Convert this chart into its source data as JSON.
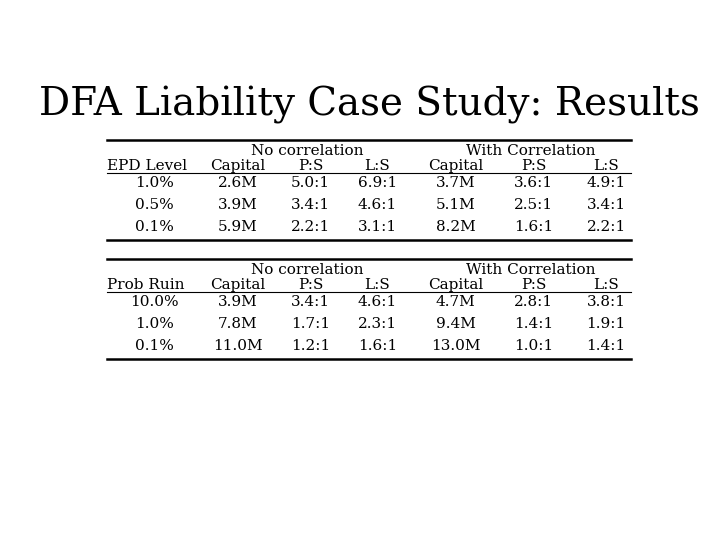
{
  "title": "DFA Liability Case Study: Results",
  "title_fontsize": 28,
  "background_color": "#ffffff",
  "table1": {
    "header_group": [
      "No correlation",
      "With Correlation"
    ],
    "col_headers": [
      "EPD Level",
      "Capital",
      "P:S",
      "L:S",
      "Capital",
      "P:S",
      "L:S"
    ],
    "rows": [
      [
        "1.0%",
        "2.6M",
        "5.0:1",
        "6.9:1",
        "3.7M",
        "3.6:1",
        "4.9:1"
      ],
      [
        "0.5%",
        "3.9M",
        "3.4:1",
        "4.6:1",
        "5.1M",
        "2.5:1",
        "3.4:1"
      ],
      [
        "0.1%",
        "5.9M",
        "2.2:1",
        "3.1:1",
        "8.2M",
        "1.6:1",
        "2.2:1"
      ]
    ]
  },
  "table2": {
    "header_group": [
      "No correlation",
      "With Correlation"
    ],
    "col_headers": [
      "Prob Ruin",
      "Capital",
      "P:S",
      "L:S",
      "Capital",
      "P:S",
      "L:S"
    ],
    "rows": [
      [
        "10.0%",
        "3.9M",
        "3.4:1",
        "4.6:1",
        "4.7M",
        "2.8:1",
        "3.8:1"
      ],
      [
        "1.0%",
        "7.8M",
        "1.7:1",
        "2.3:1",
        "9.4M",
        "1.4:1",
        "1.9:1"
      ],
      [
        "0.1%",
        "11.0M",
        "1.2:1",
        "1.6:1",
        "13.0M",
        "1.0:1",
        "1.4:1"
      ]
    ]
  },
  "font_family": "DejaVu Serif",
  "col_header_fontsize": 11,
  "data_fontsize": 11,
  "group_header_fontsize": 11
}
